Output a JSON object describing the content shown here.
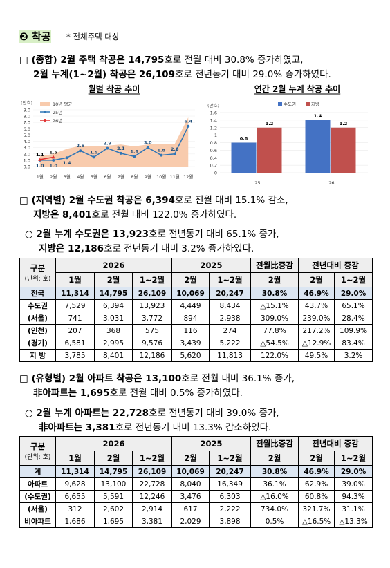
{
  "header": {
    "title": "❷ 착공",
    "note": "* 전체주택 대상"
  },
  "paragraphs": [
    [
      [
        "□ (종합) 2월 주택 착공은 ",
        "14,795",
        "호로 전월 대비 30.8% 증가하였고,"
      ],
      [
        "2월 누계(1~2월) 착공은 ",
        "26,109",
        "호로 전년동기 대비 29.0% 증가하였다."
      ]
    ],
    [
      [
        "□ (지역별) 2월 수도권 착공은 ",
        "6,394",
        "호로 전월 대비 15.1% 감소,"
      ],
      [
        "지방은 ",
        "8,401",
        "호로 전월 대비  122.0% 증가하였다."
      ]
    ],
    [
      [
        "○ 2월 누계 수도권은 ",
        "13,923",
        "호로 전년동기 대비 65.1% 증가,"
      ],
      [
        "지방은 ",
        "12,186",
        "호로 전년동기 대비 3.2% 증가하였다."
      ]
    ],
    [
      [
        "□ (유형별) 2월 아파트 착공은 ",
        "13,100",
        "호로 전월 대비 36.1% 증가,"
      ],
      [
        "非아파트는 ",
        "1,695",
        "호로 전월 대비 0.5% 증가하였다."
      ]
    ],
    [
      [
        "○ 2월 누계 아파트는 ",
        "22,728",
        "호로 전년동기 대비 39.0% 증가,"
      ],
      [
        "非아파트는 ",
        "3,381",
        "호로 전년동기 대비 13.3% 감소하였다."
      ]
    ]
  ],
  "charts": [
    {
      "type": "line",
      "title": "월별 착공 추이",
      "y_label": "(만호)",
      "categories": [
        "1월",
        "2월",
        "3월",
        "4월",
        "5월",
        "6월",
        "7월",
        "8월",
        "9월",
        "10월",
        "11월",
        "12월"
      ],
      "ylim": [
        0,
        9
      ],
      "yticks": [
        {
          "value": 0,
          "label": "0.0"
        },
        {
          "value": 1,
          "label": "1.0"
        },
        {
          "value": 2,
          "label": "2.0"
        },
        {
          "value": 3,
          "label": "3.0"
        },
        {
          "value": 4,
          "label": "4.0"
        },
        {
          "value": 5,
          "label": "5.0"
        },
        {
          "value": 6,
          "label": "6.0"
        },
        {
          "value": 7,
          "label": "7.0"
        },
        {
          "value": 8,
          "label": "8.0"
        },
        {
          "value": 9,
          "label": "9.0"
        }
      ],
      "series": [
        {
          "name": "10년 평균",
          "kind": "area",
          "color": "#f8cbad",
          "values": [
            1.6,
            2.0,
            2.8,
            3.3,
            3.2,
            3.3,
            3.5,
            3.2,
            3.5,
            3.6,
            3.6,
            7.8
          ]
        },
        {
          "name": "25년",
          "kind": "line",
          "color": "#2e75b6",
          "values": [
            1.0,
            1.0,
            1.4,
            2.5,
            1.5,
            2.9,
            2.1,
            1.6,
            3.0,
            1.8,
            2.0,
            6.4
          ],
          "value_labels": [
            "1.0",
            "1.0",
            "1.4",
            "2.5",
            "1.5",
            "2.9",
            "2.1",
            "1.6",
            "3.0",
            "1.8",
            "2.0",
            "6.4"
          ]
        },
        {
          "name": "26년",
          "kind": "line",
          "color": "#e03030",
          "values": [
            1.1,
            1.5,
            null,
            null,
            null,
            null,
            null,
            null,
            null,
            null,
            null,
            null
          ],
          "value_labels": [
            "1.1",
            "1.5",
            null,
            null,
            null,
            null,
            null,
            null,
            null,
            null,
            null,
            null
          ]
        }
      ]
    },
    {
      "type": "bar",
      "title": "연간 2월 누계 착공 추이",
      "y_label": "(만호)",
      "categories": [
        "'25",
        "'26"
      ],
      "ylim": [
        0,
        1.6
      ],
      "yticks": [
        0,
        0.2,
        0.4,
        0.6,
        0.8,
        1,
        1.2,
        1.4,
        1.6
      ],
      "series": [
        {
          "name": "수도권",
          "color": "#4472c4",
          "values": [
            0.8,
            1.4
          ]
        },
        {
          "name": "지방",
          "color": "#c0504d",
          "values": [
            1.2,
            1.2
          ]
        }
      ]
    }
  ],
  "tables": [
    {
      "unit": [
        "구분",
        "(단위: 호)"
      ],
      "groups": [
        {
          "label": "2026",
          "cols": [
            "1월",
            "2월",
            "1~2월"
          ]
        },
        {
          "label": "2025",
          "cols": [
            "2월",
            "1~2월"
          ]
        },
        {
          "label": "전월比증감",
          "cols": [
            "2월"
          ]
        },
        {
          "label": "전년대비 증감",
          "cols": [
            "2월",
            "1~2월"
          ]
        }
      ],
      "rows": [
        [
          "전국",
          "11,314",
          "14,795",
          "26,109",
          "10,069",
          "20,247",
          "30.8%",
          "46.9%",
          "29.0%"
        ],
        [
          "수도권",
          "7,529",
          "6,394",
          "13,923",
          "4,449",
          "8,434",
          "△15.1%",
          "43.7%",
          "65.1%"
        ],
        [
          "(서울)",
          "741",
          "3,031",
          "3,772",
          "894",
          "2,938",
          "309.0%",
          "239.0%",
          "28.4%"
        ],
        [
          "(인천)",
          "207",
          "368",
          "575",
          "116",
          "274",
          "77.8%",
          "217.2%",
          "109.9%"
        ],
        [
          "(경기)",
          "6,581",
          "2,995",
          "9,576",
          "3,439",
          "5,222",
          "△54.5%",
          "△12.9%",
          "83.4%"
        ],
        [
          "지  방",
          "3,785",
          "8,401",
          "12,186",
          "5,620",
          "11,813",
          "122.0%",
          "49.5%",
          "3.2%"
        ]
      ]
    },
    {
      "unit": [
        "구분",
        "(단위: 호)"
      ],
      "groups": [
        {
          "label": "2026",
          "cols": [
            "1월",
            "2월",
            "1~2월"
          ]
        },
        {
          "label": "2025",
          "cols": [
            "2월",
            "1~2월"
          ]
        },
        {
          "label": "전월比증감",
          "cols": [
            "2월"
          ]
        },
        {
          "label": "전년대비 증감",
          "cols": [
            "2월",
            "1~2월"
          ]
        }
      ],
      "rows": [
        [
          "계",
          "11,314",
          "14,795",
          "26,109",
          "10,069",
          "20,247",
          "30.8%",
          "46.9%",
          "29.0%"
        ],
        [
          "아파트",
          "9,628",
          "13,100",
          "22,728",
          "8,040",
          "16,349",
          "36.1%",
          "62.9%",
          "39.0%"
        ],
        [
          "(수도권)",
          "6,655",
          "5,591",
          "12,246",
          "3,476",
          "6,303",
          "△16.0%",
          "60.8%",
          "94.3%"
        ],
        [
          "(서울)",
          "312",
          "2,602",
          "2,914",
          "617",
          "2,222",
          "734.0%",
          "321.7%",
          "31.1%"
        ],
        [
          "비아파트",
          "1,686",
          "1,695",
          "3,381",
          "2,029",
          "3,898",
          "0.5%",
          "△16.5%",
          "△13.3%"
        ]
      ]
    }
  ]
}
